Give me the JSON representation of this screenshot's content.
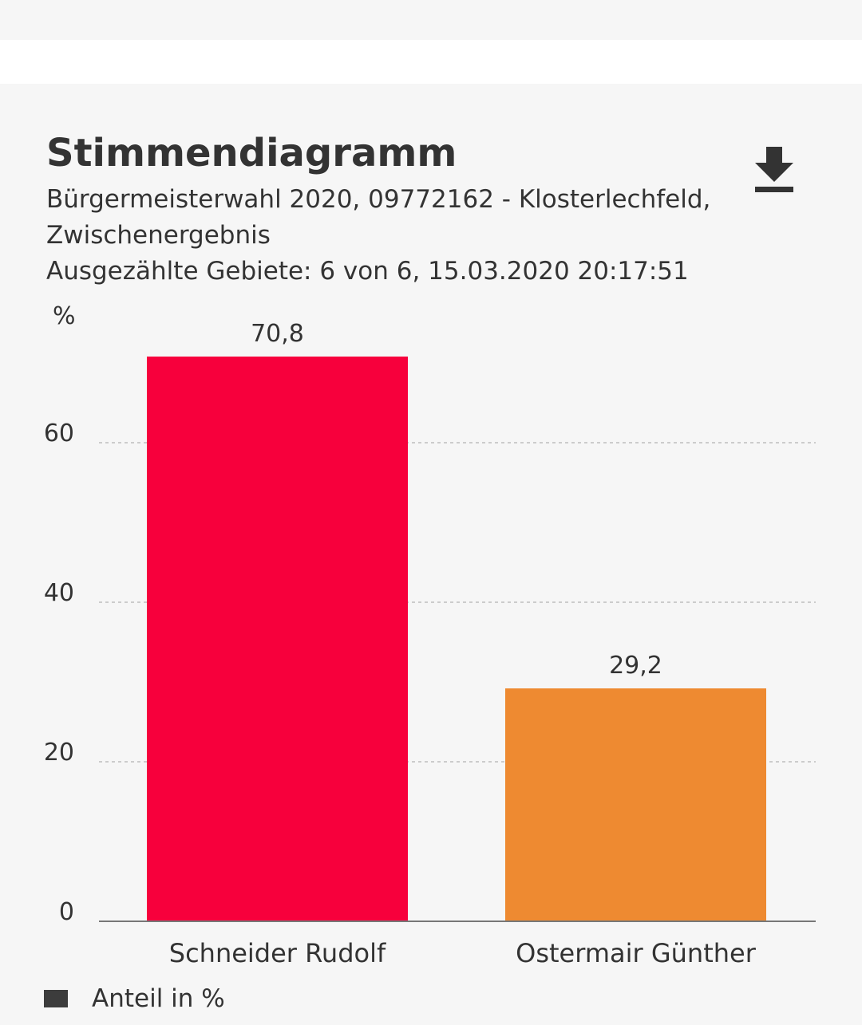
{
  "header": {
    "title": "Stimmendiagramm",
    "subtitle_line1": "Bürgermeisterwahl 2020, 09772162 - Klosterlechfeld,",
    "subtitle_line2": "Zwischenergebnis",
    "subtitle_line3": "Ausgezählte Gebiete: 6 von 6, 15.03.2020 20:17:51",
    "download_icon": "download-icon"
  },
  "chart_data": {
    "type": "bar",
    "ylabel": "%",
    "xlabel": "",
    "ylim": [
      0,
      75
    ],
    "yticks": [
      0,
      20,
      40,
      60
    ],
    "ytick_labels": [
      "0",
      "20",
      "40",
      "60"
    ],
    "grid": true,
    "categories": [
      "Schneider Rudolf",
      "Ostermair Günther"
    ],
    "values": [
      70.8,
      29.2
    ],
    "value_labels": [
      "70,8",
      "29,2"
    ],
    "colors": [
      "#f7003c",
      "#ee8a31"
    ],
    "legend": {
      "label": "Anteil in %",
      "color": "#3c3c3c",
      "position": "bottom-left"
    }
  }
}
